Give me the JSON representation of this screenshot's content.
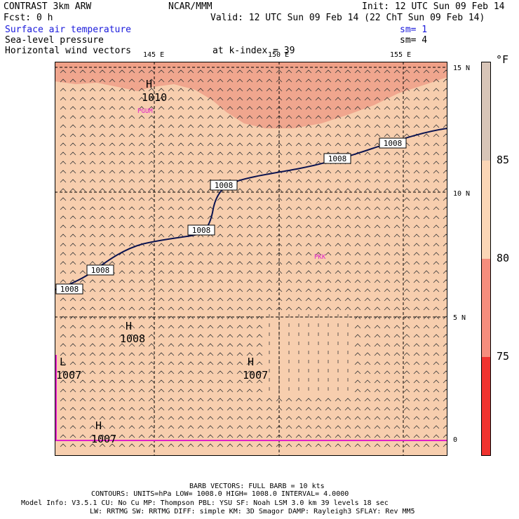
{
  "header": {
    "model": "CONTRAST  3km ARW",
    "center": "NCAR/MMM",
    "init": "Init: 12 UTC Sun 09 Feb 14",
    "fcst": "Fcst:    0 h",
    "valid": "Valid: 12 UTC Sun 09 Feb 14 (22 ChT Sun 09 Feb 14)",
    "field1": "Surface air temperature",
    "field2": "Sea-level pressure",
    "field3": "Horizontal wind vectors",
    "sm1": "sm= 1",
    "sm2": "sm= 4",
    "kindex": "at k-index = 39"
  },
  "axes": {
    "lon_labels": [
      "145 E",
      "150 E",
      "155 E"
    ],
    "lat_labels": [
      "15 N",
      "10 N",
      "5 N",
      "0"
    ]
  },
  "colorbar": {
    "unit": "°F",
    "labels": [
      "85",
      "80",
      "75"
    ],
    "colors": {
      "c85plus": "#d8c5b8",
      "c80_85": "#fbd6b6",
      "c75_80": "#f58d7d",
      "c70_75": "#f0332f"
    }
  },
  "map_colors": {
    "base": "#f7ceae",
    "warm": "#f0a68e",
    "isobar": "#0c1450",
    "label_pink": "#e020c8"
  },
  "isobars": [
    {
      "label": "1008"
    },
    {
      "label": "1008"
    },
    {
      "label": "1008"
    },
    {
      "label": "1008"
    },
    {
      "label": "1008"
    },
    {
      "label": "1008"
    }
  ],
  "centers": [
    {
      "type": "H",
      "value": "1010"
    },
    {
      "type": "H",
      "value": "1008"
    },
    {
      "type": "H",
      "value": "1007"
    },
    {
      "type": "L",
      "value": "1007"
    },
    {
      "type": "H",
      "value": "1007"
    }
  ],
  "stations": [
    "PGUM",
    "PKK"
  ],
  "footer": {
    "barb": "BARB VECTORS:  FULL BARB = 10 kts",
    "contours": "CONTOURS:  UNITS=hPa  LOW=   1008.0       HIGH=   1008.0       INTERVAL=    4.0000",
    "model_info": "Model Info: V3.5.1     CU: No Cu     MP: Thompson     PBL: YSU       SF: Noah LSM     3.0 km   39 levels    18 sec",
    "model_info2": "LW: RRTMG    SW: RRTMG   DIFF: simple KM: 3D Smagor DAMP: Rayleigh3  SFLAY: Rev MM5"
  }
}
